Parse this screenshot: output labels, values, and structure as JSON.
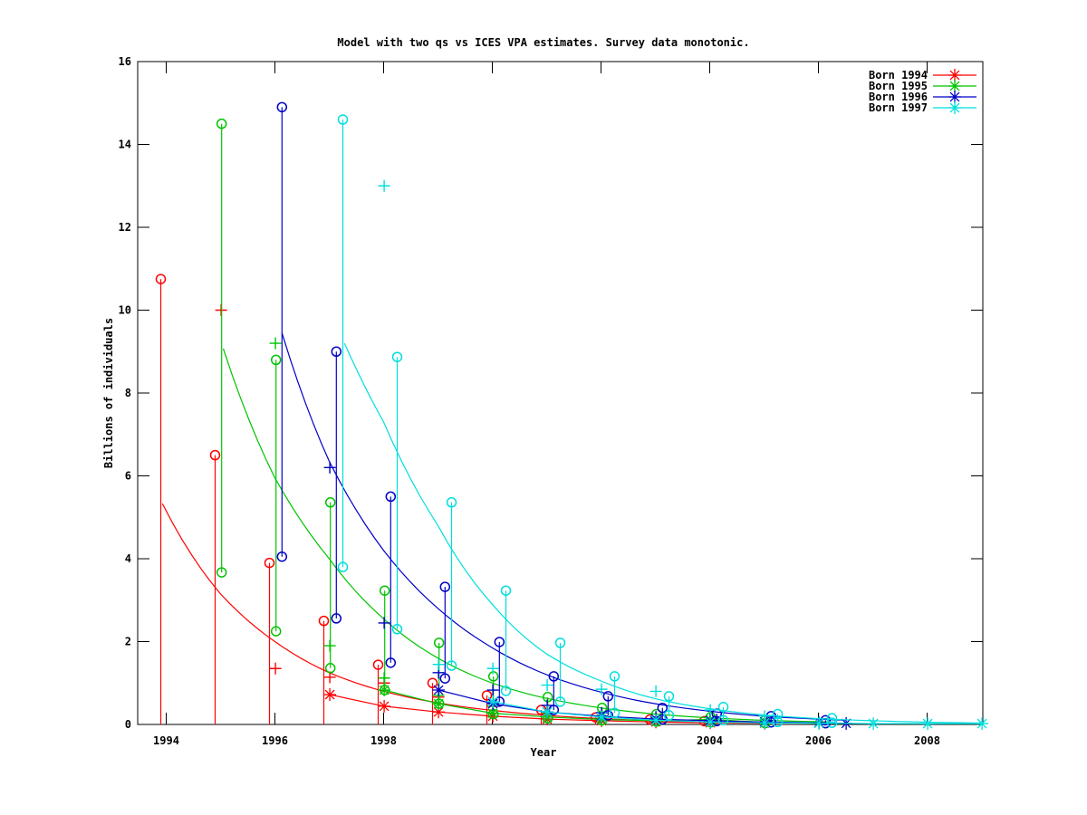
{
  "title": "Model with two qs vs ICES VPA estimates. Survey data monotonic.",
  "axes": {
    "xlabel": "Year",
    "ylabel": "Billions of individuals",
    "x_ticks": [
      1994,
      1996,
      1998,
      2000,
      2002,
      2004,
      2006,
      2008
    ],
    "y_ticks": [
      0,
      2,
      4,
      6,
      8,
      10,
      12,
      14,
      16
    ],
    "x_range": [
      1993.47,
      2009.03
    ],
    "y_range": [
      0,
      16
    ],
    "grid": false,
    "legend_position": "top-right-inside"
  },
  "chart_data": {
    "type": "line-scatter-errorbars",
    "series": [
      {
        "name": "Born 1994",
        "color": "#ff0000",
        "bar_dx": -0.1,
        "lo_circles": false,
        "survey_bars": [
          [
            1994,
            10.75,
            0
          ],
          [
            1995,
            6.5,
            0
          ],
          [
            1996,
            3.9,
            0
          ],
          [
            1997,
            2.5,
            0
          ],
          [
            1998,
            1.44,
            0
          ],
          [
            1999,
            1.0,
            0
          ],
          [
            2000,
            0.7,
            0
          ],
          [
            2001,
            0.35,
            0
          ],
          [
            2002,
            0.17,
            0
          ],
          [
            2003,
            0.12,
            0
          ],
          [
            2004,
            0.08,
            0
          ]
        ],
        "survey_plus": [
          [
            1995,
            10.0
          ],
          [
            1996,
            1.35
          ],
          [
            1997,
            1.14
          ],
          [
            1998,
            1.0
          ],
          [
            1999,
            0.66
          ],
          [
            2000,
            0.44
          ],
          [
            2001,
            0.28
          ],
          [
            2002,
            0.2
          ],
          [
            2003,
            0.13
          ],
          [
            2004,
            0.09
          ]
        ],
        "vpa_stars": [
          [
            1997,
            0.72
          ],
          [
            1998,
            0.44
          ],
          [
            1999,
            0.3
          ],
          [
            2000,
            0.2
          ],
          [
            2001,
            0.13
          ],
          [
            2002,
            0.09
          ],
          [
            2003,
            0.06
          ],
          [
            2004,
            0.04
          ],
          [
            2005,
            0.03
          ]
        ],
        "model_curve": [
          [
            1993.93,
            5.33
          ],
          [
            1995,
            3.15
          ],
          [
            1996,
            2.0
          ],
          [
            1997,
            1.25
          ],
          [
            1998,
            0.8
          ],
          [
            1999,
            0.52
          ],
          [
            2000,
            0.34
          ],
          [
            2001,
            0.22
          ],
          [
            2002,
            0.14
          ],
          [
            2003,
            0.09
          ],
          [
            2004,
            0.06
          ],
          [
            2005.1,
            0.04
          ]
        ]
      },
      {
        "name": "Born 1995",
        "color": "#00c400",
        "bar_dx": 0.02,
        "lo_circles": true,
        "survey_bars": [
          [
            1995,
            14.5,
            3.67
          ],
          [
            1996,
            8.8,
            2.25
          ],
          [
            1997,
            5.36,
            1.36
          ],
          [
            1998,
            3.23,
            0.83
          ],
          [
            1999,
            1.97,
            0.5
          ],
          [
            2000,
            1.16,
            0.25
          ],
          [
            2001,
            0.66,
            0.15
          ],
          [
            2002,
            0.4,
            0.1
          ],
          [
            2003,
            0.25,
            0.07
          ],
          [
            2004,
            0.18,
            0.05
          ],
          [
            2005,
            0.1,
            0.03
          ]
        ],
        "survey_plus": [
          [
            1996,
            9.2
          ],
          [
            1997,
            1.9
          ],
          [
            1998,
            1.12
          ],
          [
            1999,
            0.7
          ],
          [
            2000,
            0.45
          ],
          [
            2001,
            0.3
          ],
          [
            2002,
            0.2
          ],
          [
            2003,
            0.13
          ],
          [
            2004,
            0.09
          ]
        ],
        "vpa_stars": [
          [
            1998,
            0.83
          ],
          [
            1999,
            0.5
          ],
          [
            2000,
            0.27
          ],
          [
            2001,
            0.18
          ],
          [
            2002,
            0.12
          ],
          [
            2003,
            0.09
          ],
          [
            2004,
            0.12
          ],
          [
            2005,
            0.05
          ],
          [
            2006,
            0.03
          ]
        ],
        "model_curve": [
          [
            1995.05,
            9.07
          ],
          [
            1996,
            5.95
          ],
          [
            1997,
            4.0
          ],
          [
            1998,
            2.55
          ],
          [
            1999,
            1.6
          ],
          [
            2000,
            1.0
          ],
          [
            2001,
            0.63
          ],
          [
            2002,
            0.4
          ],
          [
            2003,
            0.25
          ],
          [
            2004,
            0.16
          ],
          [
            2005,
            0.1
          ],
          [
            2006.2,
            0.06
          ]
        ]
      },
      {
        "name": "Born 1996",
        "color": "#0000c8",
        "bar_dx": 0.13,
        "lo_circles": true,
        "survey_bars": [
          [
            1996,
            14.9,
            4.05
          ],
          [
            1997,
            9.0,
            2.56
          ],
          [
            1998,
            5.5,
            1.49
          ],
          [
            1999,
            3.32,
            1.11
          ],
          [
            2000,
            1.99,
            0.55
          ],
          [
            2001,
            1.16,
            0.35
          ],
          [
            2002,
            0.68,
            0.22
          ],
          [
            2003,
            0.4,
            0.12
          ],
          [
            2004,
            0.26,
            0.08
          ],
          [
            2005,
            0.2,
            0.05
          ],
          [
            2006,
            0.1,
            0.03
          ]
        ],
        "survey_plus": [
          [
            1997,
            6.2
          ],
          [
            1998,
            2.45
          ],
          [
            1999,
            1.25
          ],
          [
            2000,
            0.83
          ],
          [
            2001,
            0.46
          ],
          [
            2002,
            0.28
          ],
          [
            2003,
            0.18
          ],
          [
            2004,
            0.1
          ]
        ],
        "vpa_stars": [
          [
            1999,
            0.83
          ],
          [
            2000,
            0.5
          ],
          [
            2001,
            0.3
          ],
          [
            2002,
            0.2
          ],
          [
            2003,
            0.13
          ],
          [
            2004,
            0.09
          ],
          [
            2005,
            0.06
          ],
          [
            2006,
            0.04
          ],
          [
            2006.5,
            0.025
          ]
        ],
        "model_curve": [
          [
            1996.13,
            9.45
          ],
          [
            1997,
            6.35
          ],
          [
            1998,
            4.2
          ],
          [
            1999,
            2.8
          ],
          [
            2000,
            1.85
          ],
          [
            2001,
            1.2
          ],
          [
            2002,
            0.78
          ],
          [
            2003,
            0.5
          ],
          [
            2004,
            0.32
          ],
          [
            2005,
            0.2
          ],
          [
            2006,
            0.13
          ],
          [
            2006.5,
            0.1
          ]
        ]
      },
      {
        "name": "Born 1997",
        "color": "#00dede",
        "bar_dx": 0.25,
        "lo_circles": true,
        "survey_bars": [
          [
            1997,
            14.6,
            3.8
          ],
          [
            1998,
            8.87,
            2.3
          ],
          [
            1999,
            5.36,
            1.42
          ],
          [
            2000,
            3.23,
            0.81
          ],
          [
            2001,
            1.97,
            0.55
          ],
          [
            2002,
            1.16,
            0.28
          ],
          [
            2003,
            0.68,
            0.22
          ],
          [
            2004,
            0.42,
            0.1
          ],
          [
            2005,
            0.25,
            0.06
          ],
          [
            2006,
            0.15,
            0.04
          ]
        ],
        "survey_plus": [
          [
            1998,
            13.0
          ],
          [
            1999,
            1.45
          ],
          [
            2000,
            1.35
          ],
          [
            2001,
            0.95
          ],
          [
            2002,
            0.85
          ],
          [
            2003,
            0.8
          ],
          [
            2004,
            0.35
          ],
          [
            2005,
            0.2
          ]
        ],
        "vpa_stars": [
          [
            2000,
            0.55
          ],
          [
            2001,
            0.3
          ],
          [
            2002,
            0.18
          ],
          [
            2003,
            0.1
          ],
          [
            2004,
            0.06
          ],
          [
            2005,
            0.04
          ],
          [
            2006,
            0.03
          ],
          [
            2007,
            0.02
          ],
          [
            2008,
            0.02
          ],
          [
            2009,
            0.02
          ]
        ],
        "model_curve": [
          [
            1997.28,
            9.2
          ],
          [
            1998,
            7.3
          ],
          [
            1999,
            4.8
          ],
          [
            2000,
            2.9
          ],
          [
            2001,
            1.7
          ],
          [
            2002,
            1.05
          ],
          [
            2003,
            0.62
          ],
          [
            2004,
            0.38
          ],
          [
            2005,
            0.23
          ],
          [
            2006,
            0.14
          ],
          [
            2007,
            0.09
          ],
          [
            2008,
            0.055
          ],
          [
            2009.03,
            0.035
          ]
        ]
      }
    ]
  }
}
